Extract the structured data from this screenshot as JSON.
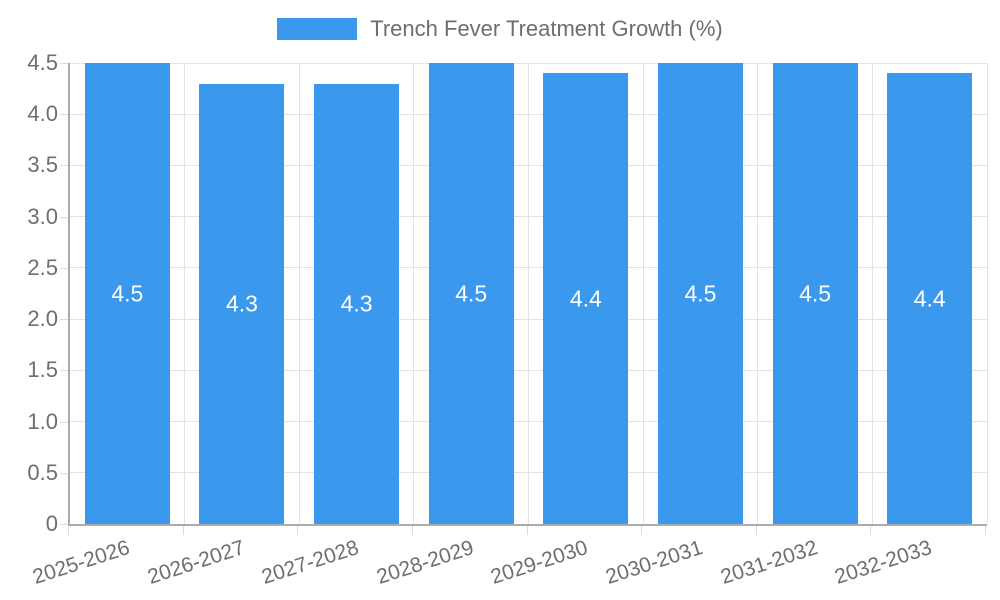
{
  "legend": {
    "label": "Trench Fever Treatment Growth (%)"
  },
  "chart_data": {
    "type": "bar",
    "title": "",
    "series_name": "Trench Fever Treatment Growth (%)",
    "categories": [
      "2025-2026",
      "2026-2027",
      "2027-2028",
      "2028-2029",
      "2029-2030",
      "2030-2031",
      "2031-2032",
      "2032-2033"
    ],
    "values": [
      4.5,
      4.3,
      4.3,
      4.5,
      4.4,
      4.5,
      4.5,
      4.4
    ],
    "bar_value_labels": [
      "4.5",
      "4.3",
      "4.3",
      "4.5",
      "4.4",
      "4.5",
      "4.5",
      "4.4"
    ],
    "xlabel": "",
    "ylabel": "",
    "ylim": [
      0,
      4.5
    ],
    "y_ticks": [
      {
        "value": 0,
        "label": "0"
      },
      {
        "value": 0.5,
        "label": "0.5"
      },
      {
        "value": 1,
        "label": "1.0"
      },
      {
        "value": 1.5,
        "label": "1.5"
      },
      {
        "value": 2,
        "label": "2.0"
      },
      {
        "value": 2.5,
        "label": "2.5"
      },
      {
        "value": 3,
        "label": "3.0"
      },
      {
        "value": 3.5,
        "label": "3.5"
      },
      {
        "value": 4,
        "label": "4.0"
      },
      {
        "value": 4.5,
        "label": "4.5"
      }
    ],
    "grid": true,
    "legend_position": "top-center",
    "colors": {
      "bar": "#3a99ec",
      "bar_value_text": "#ffffff",
      "axis_text": "#6e6e6e",
      "grid_line": "#e3e3e3",
      "axis_line": "#ababab",
      "background": "#ffffff"
    }
  }
}
